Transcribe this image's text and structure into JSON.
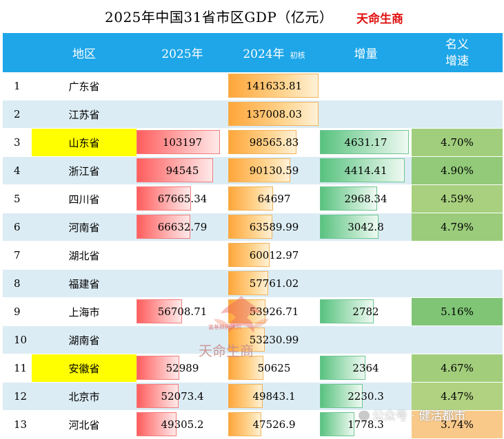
{
  "title": "2025年中国31省市区GDP（亿元）",
  "brand": "天命生商",
  "headers": {
    "region": "地区",
    "y2025": "2025年",
    "y2024": "2024年",
    "y2024_note": "初核",
    "increase": "增量",
    "nominal_growth_line1": "名义",
    "nominal_growth_line2": "增速"
  },
  "colors": {
    "header_bg": "#1ea6e8",
    "highlight_yellow": "#ffff00",
    "brand_red": "#e01010"
  },
  "rows": [
    {
      "rank": "1",
      "region": "广东省",
      "gdp2025": "",
      "gdp2025_num": null,
      "gdp2024": "141633.81",
      "gdp2024_num": 141633.81,
      "increase": "",
      "increase_num": null,
      "growth": "",
      "growth_num": null,
      "highlight": false
    },
    {
      "rank": "2",
      "region": "江苏省",
      "gdp2025": "",
      "gdp2025_num": null,
      "gdp2024": "137008.03",
      "gdp2024_num": 137008.03,
      "increase": "",
      "increase_num": null,
      "growth": "",
      "growth_num": null,
      "highlight": false
    },
    {
      "rank": "3",
      "region": "山东省",
      "gdp2025": "103197",
      "gdp2025_num": 103197,
      "gdp2024": "98565.83",
      "gdp2024_num": 98565.83,
      "increase": "4631.17",
      "increase_num": 4631.17,
      "growth": "4.70%",
      "growth_num": 4.7,
      "highlight": true
    },
    {
      "rank": "4",
      "region": "浙江省",
      "gdp2025": "94545",
      "gdp2025_num": 94545,
      "gdp2024": "90130.59",
      "gdp2024_num": 90130.59,
      "increase": "4414.41",
      "increase_num": 4414.41,
      "growth": "4.90%",
      "growth_num": 4.9,
      "highlight": false
    },
    {
      "rank": "5",
      "region": "四川省",
      "gdp2025": "67665.34",
      "gdp2025_num": 67665.34,
      "gdp2024": "64697",
      "gdp2024_num": 64697,
      "increase": "2968.34",
      "increase_num": 2968.34,
      "growth": "4.59%",
      "growth_num": 4.59,
      "highlight": false
    },
    {
      "rank": "6",
      "region": "河南省",
      "gdp2025": "66632.79",
      "gdp2025_num": 66632.79,
      "gdp2024": "63589.99",
      "gdp2024_num": 63589.99,
      "increase": "3042.8",
      "increase_num": 3042.8,
      "growth": "4.79%",
      "growth_num": 4.79,
      "highlight": false
    },
    {
      "rank": "7",
      "region": "湖北省",
      "gdp2025": "",
      "gdp2025_num": null,
      "gdp2024": "60012.97",
      "gdp2024_num": 60012.97,
      "increase": "",
      "increase_num": null,
      "growth": "",
      "growth_num": null,
      "highlight": false
    },
    {
      "rank": "8",
      "region": "福建省",
      "gdp2025": "",
      "gdp2025_num": null,
      "gdp2024": "57761.02",
      "gdp2024_num": 57761.02,
      "increase": "",
      "increase_num": null,
      "growth": "",
      "growth_num": null,
      "highlight": false
    },
    {
      "rank": "9",
      "region": "上海市",
      "gdp2025": "56708.71",
      "gdp2025_num": 56708.71,
      "gdp2024": "53926.71",
      "gdp2024_num": 53926.71,
      "increase": "2782",
      "increase_num": 2782,
      "growth": "5.16%",
      "growth_num": 5.16,
      "highlight": false
    },
    {
      "rank": "10",
      "region": "湖南省",
      "gdp2025": "",
      "gdp2025_num": null,
      "gdp2024": "53230.99",
      "gdp2024_num": 53230.99,
      "increase": "",
      "increase_num": null,
      "growth": "",
      "growth_num": null,
      "highlight": false
    },
    {
      "rank": "11",
      "region": "安徽省",
      "gdp2025": "52989",
      "gdp2025_num": 52989,
      "gdp2024": "50625",
      "gdp2024_num": 50625,
      "increase": "2364",
      "increase_num": 2364,
      "growth": "4.67%",
      "growth_num": 4.67,
      "highlight": true
    },
    {
      "rank": "12",
      "region": "北京市",
      "gdp2025": "52073.4",
      "gdp2025_num": 52073.4,
      "gdp2024": "49843.1",
      "gdp2024_num": 49843.1,
      "increase": "2230.3",
      "increase_num": 2230.3,
      "growth": "4.47%",
      "growth_num": 4.47,
      "highlight": false
    },
    {
      "rank": "13",
      "region": "河北省",
      "gdp2025": "49305.2",
      "gdp2025_num": 49305.2,
      "gdp2024": "47526.9",
      "gdp2024_num": 47526.9,
      "increase": "1778.3",
      "increase_num": 1778.3,
      "growth": "3.74%",
      "growth_num": 3.74,
      "highlight": false
    }
  ],
  "watermark": {
    "center_text": "天命生商",
    "center_small": "富基枫帆建筑",
    "footer_text": "公众号 · 健活都市",
    "footer_icon": "wechat-icon"
  }
}
